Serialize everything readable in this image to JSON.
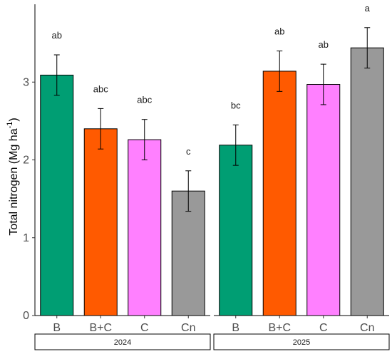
{
  "chart_data": {
    "type": "bar",
    "ylabel": "Total nitrogen (Mg ha",
    "ylabel_sup": "-1",
    "ylabel_close": ")",
    "ylim": [
      0,
      4
    ],
    "yticks": [
      0,
      1,
      2,
      3
    ],
    "categories": [
      "B",
      "B+C",
      "C",
      "Cn"
    ],
    "colors": {
      "B": "#009E73",
      "B+C": "#FF5A00",
      "C": "#FF80FF",
      "Cn": "#999999"
    },
    "panels": [
      {
        "facet": "2024",
        "values": [
          3.09,
          2.4,
          2.26,
          1.6
        ],
        "error": [
          0.26,
          0.26,
          0.26,
          0.26
        ],
        "letters": [
          "ab",
          "abc",
          "abc",
          "c"
        ]
      },
      {
        "facet": "2025",
        "values": [
          2.19,
          3.14,
          2.97,
          3.44
        ],
        "error": [
          0.26,
          0.26,
          0.26,
          0.26
        ],
        "letters": [
          "bc",
          "ab",
          "ab",
          "a"
        ]
      }
    ]
  }
}
